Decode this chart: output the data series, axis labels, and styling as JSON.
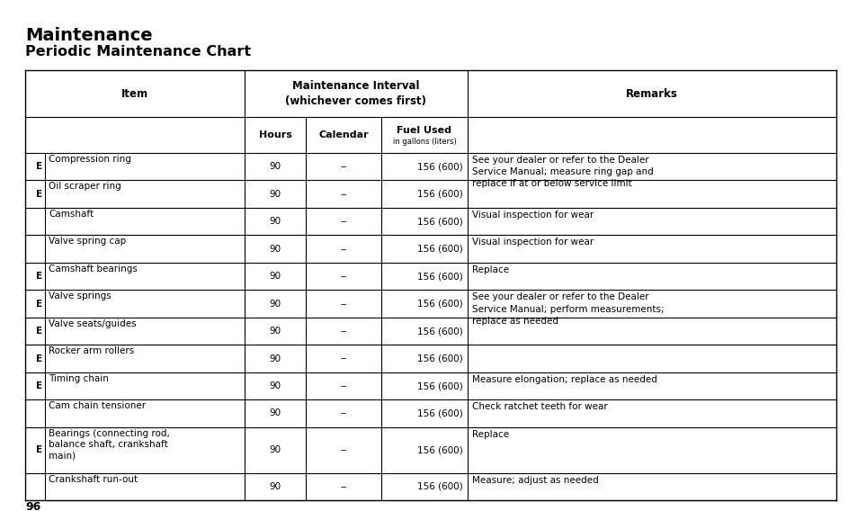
{
  "title1": "Maintenance",
  "title2": "Periodic Maintenance Chart",
  "bg_color": "#ffffff",
  "text_color": "#000000",
  "rows": [
    {
      "e": "E",
      "item": "Compression ring",
      "hours": "90",
      "calendar": "--",
      "fuel": "156 (600)",
      "remarks": "See your dealer or refer to the Dealer\nService Manual; measure ring gap and\nreplace if at or below service limit",
      "remark_row": true
    },
    {
      "e": "E",
      "item": "Oil scraper ring",
      "hours": "90",
      "calendar": "--",
      "fuel": "156 (600)",
      "remarks": "",
      "remark_row": false
    },
    {
      "e": "",
      "item": "Camshaft",
      "hours": "90",
      "calendar": "--",
      "fuel": "156 (600)",
      "remarks": "Visual inspection for wear",
      "remark_row": true
    },
    {
      "e": "",
      "item": "Valve spring cap",
      "hours": "90",
      "calendar": "--",
      "fuel": "156 (600)",
      "remarks": "Visual inspection for wear",
      "remark_row": true
    },
    {
      "e": "E",
      "item": "Camshaft bearings",
      "hours": "90",
      "calendar": "--",
      "fuel": "156 (600)",
      "remarks": "Replace",
      "remark_row": true
    },
    {
      "e": "E",
      "item": "Valve springs",
      "hours": "90",
      "calendar": "--",
      "fuel": "156 (600)",
      "remarks": "See your dealer or refer to the Dealer\nService Manual; perform measurements;\nreplace as needed",
      "remark_row": true
    },
    {
      "e": "E",
      "item": "Valve seats/guides",
      "hours": "90",
      "calendar": "--",
      "fuel": "156 (600)",
      "remarks": "",
      "remark_row": false
    },
    {
      "e": "E",
      "item": "Rocker arm rollers",
      "hours": "90",
      "calendar": "--",
      "fuel": "156 (600)",
      "remarks": "",
      "remark_row": false
    },
    {
      "e": "E",
      "item": "Timing chain",
      "hours": "90",
      "calendar": "--",
      "fuel": "156 (600)",
      "remarks": "Measure elongation; replace as needed",
      "remark_row": true
    },
    {
      "e": "",
      "item": "Cam chain tensioner",
      "hours": "90",
      "calendar": "--",
      "fuel": "156 (600)",
      "remarks": "Check ratchet teeth for wear",
      "remark_row": true
    },
    {
      "e": "E",
      "item": "Bearings (connecting rod,\nbalance shaft, crankshaft\nmain)",
      "hours": "90",
      "calendar": "--",
      "fuel": "156 (600)",
      "remarks": "Replace",
      "remark_row": true
    },
    {
      "e": "",
      "item": "Crankshaft run-out",
      "hours": "90",
      "calendar": "--",
      "fuel": "156 (600)",
      "remarks": "Measure; adjust as needed",
      "remark_row": true
    }
  ],
  "page_number": "96",
  "merged_remarks": {
    "0": {
      "span": 2,
      "text": "See your dealer or refer to the Dealer\nService Manual; measure ring gap and\nreplace if at or below service limit"
    },
    "5": {
      "span": 3,
      "text": "See your dealer or refer to the Dealer\nService Manual; perform measurements;\nreplace as needed"
    }
  }
}
